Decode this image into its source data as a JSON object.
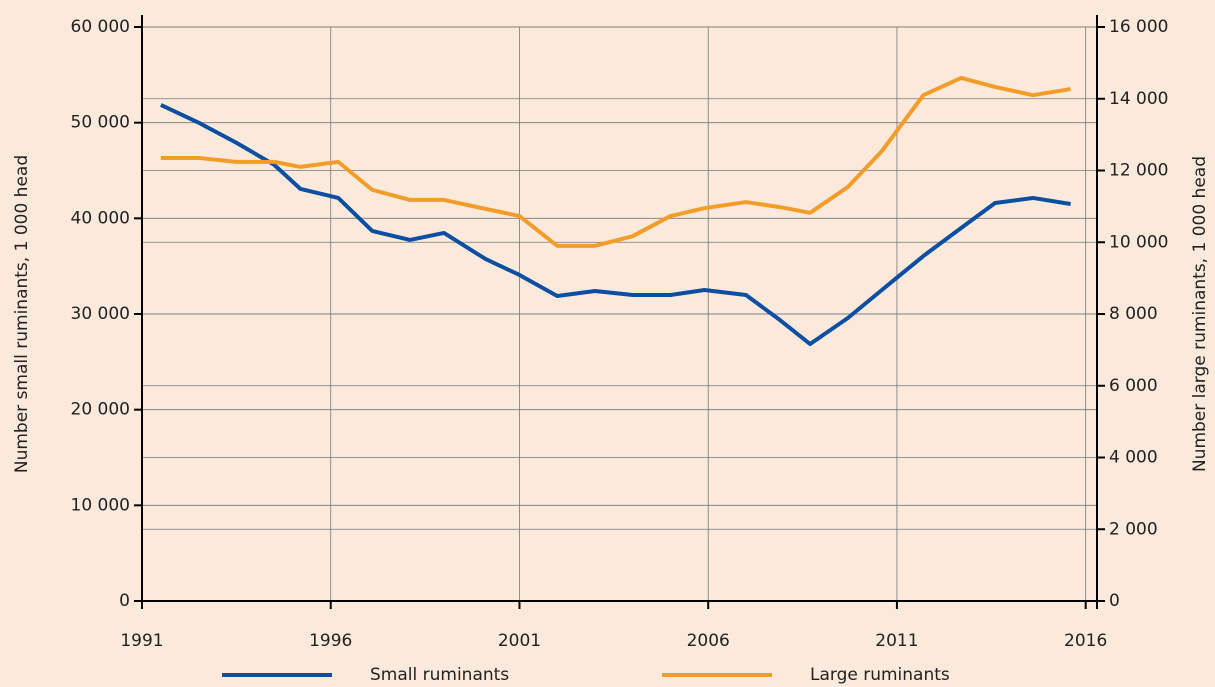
{
  "chart_data": {
    "type": "line",
    "ylabel": "Number small ruminants, 1 000 head",
    "y2label": "Number large ruminants, 1 000 head",
    "x": [
      1991.5,
      1992.5,
      1993.5,
      1994.5,
      1995.2,
      1996.2,
      1997.1,
      1998.1,
      1999.0,
      2000.1,
      2001.0,
      2002.0,
      2003.0,
      2004.0,
      2005.0,
      2005.9,
      2007.0,
      2007.9,
      2008.7,
      2009.7,
      2010.6,
      2011.7,
      2012.7,
      2013.6,
      2014.6,
      2015.6
    ],
    "series": [
      {
        "name": "Small ruminants",
        "color": "#0b4ea2",
        "axis": "y",
        "values": [
          51850,
          50000,
          47900,
          45600,
          43070,
          42130,
          38680,
          37740,
          38470,
          35750,
          34080,
          31880,
          32400,
          31990,
          31990,
          32510,
          31990,
          29370,
          26860,
          29580,
          32510,
          36060,
          38990,
          41600,
          42130,
          41500
        ]
      },
      {
        "name": "Large ruminants",
        "color": "#f39c2a",
        "axis": "y2",
        "values": [
          12350,
          12350,
          12240,
          12240,
          12100,
          12240,
          11460,
          11180,
          11180,
          10930,
          10730,
          9900,
          9900,
          10170,
          10730,
          10950,
          11120,
          10980,
          10820,
          11540,
          12540,
          14100,
          14580,
          14330,
          14100,
          14270
        ]
      }
    ],
    "xlim": [
      1991,
      2016.3
    ],
    "xticks": [
      1991,
      1996,
      2001,
      2006,
      2011,
      2016
    ],
    "ylim": [
      0,
      60000
    ],
    "yticks": [
      0,
      {
        "value": 10000,
        "label": "10 000"
      },
      {
        "value": 20000,
        "label": "20 000"
      },
      {
        "value": 30000,
        "label": "30 000"
      },
      {
        "value": 40000,
        "label": "40 000"
      },
      {
        "value": 50000,
        "label": "50 000"
      },
      {
        "value": 60000,
        "label": "60 000"
      }
    ],
    "y2lim": [
      0,
      16000
    ],
    "y2ticks": [
      0,
      {
        "value": 2000,
        "label": "2 000"
      },
      {
        "value": 4000,
        "label": "4 000"
      },
      {
        "value": 6000,
        "label": "6 000"
      },
      {
        "value": 8000,
        "label": "8 000"
      },
      {
        "value": 10000,
        "label": "10 000"
      },
      {
        "value": 12000,
        "label": "12 000"
      },
      {
        "value": 14000,
        "label": "14 000"
      },
      {
        "value": 16000,
        "label": "16 000"
      }
    ],
    "grid": true,
    "legend": "bottom"
  }
}
